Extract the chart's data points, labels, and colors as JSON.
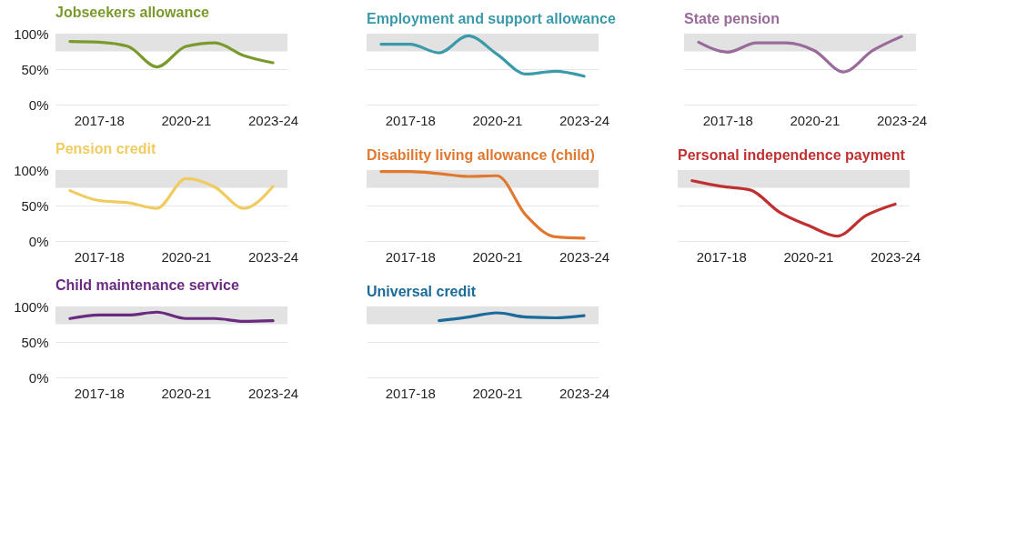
{
  "chart_data": [
    {
      "type": "line",
      "title": "Jobseekers allowance",
      "categories": [
        null,
        "2017-18",
        null,
        null,
        "2020-21",
        null,
        null,
        "2023-24"
      ],
      "color": "#7a9a2e",
      "values": [
        89,
        88,
        82,
        53,
        82,
        87,
        69,
        59
      ],
      "ylim": [
        0,
        100
      ],
      "yticks": [
        {
          "value": 0,
          "label": "0%"
        },
        {
          "value": 50,
          "label": "50%"
        },
        {
          "value": 100,
          "label": "100%"
        }
      ],
      "grid": "y",
      "bands": [
        {
          "axis": "y",
          "from": 75,
          "to": 100,
          "color": "#e2e2e2"
        }
      ]
    },
    {
      "type": "line",
      "title": "Employment and support allowance",
      "categories": [
        null,
        "2017-18",
        null,
        null,
        "2020-21",
        null,
        null,
        "2023-24"
      ],
      "color": "#3a9aaa",
      "values": [
        85,
        85,
        73,
        97,
        71,
        43,
        47,
        40
      ],
      "ylim": [
        0,
        100
      ],
      "yticks": [
        {
          "value": 0,
          "label": null
        },
        {
          "value": 50,
          "label": null
        },
        {
          "value": 100,
          "label": null
        }
      ],
      "grid": "y",
      "tick_labels": "x",
      "bands": [
        {
          "axis": "y",
          "from": 75,
          "to": 100,
          "color": "#e2e2e2"
        }
      ]
    },
    {
      "type": "line",
      "title": "State pension",
      "categories": [
        null,
        "2017-18",
        null,
        null,
        "2020-21",
        null,
        null,
        "2023-24"
      ],
      "color": "#9a6a9a",
      "values": [
        88,
        74,
        87,
        87,
        76,
        46,
        76,
        96
      ],
      "ylim": [
        0,
        100
      ],
      "yticks": [
        {
          "value": 0,
          "label": null
        },
        {
          "value": 50,
          "label": null
        },
        {
          "value": 100,
          "label": null
        }
      ],
      "grid": "y",
      "tick_labels": "x",
      "bands": [
        {
          "axis": "y",
          "from": 75,
          "to": 100,
          "color": "#e2e2e2"
        }
      ]
    },
    {
      "type": "line",
      "title": "Pension credit",
      "categories": [
        null,
        "2017-18",
        null,
        null,
        "2020-21",
        null,
        null,
        "2023-24"
      ],
      "color": "#f0cc60",
      "values": [
        71,
        57,
        54,
        46,
        88,
        76,
        46,
        77
      ],
      "ylim": [
        0,
        100
      ],
      "yticks": [
        {
          "value": 0,
          "label": "0%"
        },
        {
          "value": 50,
          "label": "50%"
        },
        {
          "value": 100,
          "label": "100%"
        }
      ],
      "grid": "y",
      "bands": [
        {
          "axis": "y",
          "from": 75,
          "to": 100,
          "color": "#e2e2e2"
        }
      ]
    },
    {
      "type": "line",
      "title": "Disability living allowance (child)",
      "categories": [
        null,
        "2017-18",
        null,
        null,
        "2020-21",
        null,
        null,
        "2023-24"
      ],
      "color": "#e07830",
      "values": [
        98,
        98,
        95,
        91,
        92,
        36,
        6,
        4
      ],
      "ylim": [
        0,
        100
      ],
      "yticks": [
        {
          "value": 0,
          "label": null
        },
        {
          "value": 50,
          "label": null
        },
        {
          "value": 100,
          "label": null
        }
      ],
      "grid": "y",
      "tick_labels": "x",
      "bands": [
        {
          "axis": "y",
          "from": 75,
          "to": 100,
          "color": "#e2e2e2"
        }
      ]
    },
    {
      "type": "line",
      "title": "Personal independence payment",
      "categories": [
        null,
        "2017-18",
        null,
        null,
        "2020-21",
        null,
        null,
        "2023-24"
      ],
      "color": "#c03030",
      "values": [
        85,
        77,
        72,
        41,
        22,
        7,
        36,
        52
      ],
      "ylim": [
        0,
        100
      ],
      "yticks": [
        {
          "value": 0,
          "label": null
        },
        {
          "value": 50,
          "label": null
        },
        {
          "value": 100,
          "label": null
        }
      ],
      "grid": "y",
      "tick_labels": "x",
      "bands": [
        {
          "axis": "y",
          "from": 75,
          "to": 100,
          "color": "#e2e2e2"
        }
      ]
    },
    {
      "type": "line",
      "title": "Child maintenance service",
      "categories": [
        null,
        "2017-18",
        null,
        null,
        "2020-21",
        null,
        null,
        "2023-24"
      ],
      "color": "#6a2a80",
      "values": [
        83,
        88,
        88,
        92,
        83,
        83,
        79,
        80
      ],
      "ylim": [
        0,
        100
      ],
      "yticks": [
        {
          "value": 0,
          "label": "0%"
        },
        {
          "value": 50,
          "label": "50%"
        },
        {
          "value": 100,
          "label": "100%"
        }
      ],
      "grid": "y",
      "bands": [
        {
          "axis": "y",
          "from": 75,
          "to": 100,
          "color": "#e2e2e2"
        }
      ]
    },
    {
      "type": "line",
      "title": "Universal credit",
      "categories": [
        null,
        "2017-18",
        null,
        null,
        "2020-21",
        null,
        null,
        "2023-24"
      ],
      "color": "#1a6a9a",
      "values": [
        null,
        null,
        80,
        85,
        91,
        85,
        84,
        87
      ],
      "ylim": [
        0,
        100
      ],
      "yticks": [
        {
          "value": 0,
          "label": null
        },
        {
          "value": 50,
          "label": null
        },
        {
          "value": 100,
          "label": null
        }
      ],
      "grid": "y",
      "tick_labels": "x",
      "bands": [
        {
          "axis": "y",
          "from": 75,
          "to": 100,
          "color": "#e2e2e2"
        }
      ]
    }
  ]
}
